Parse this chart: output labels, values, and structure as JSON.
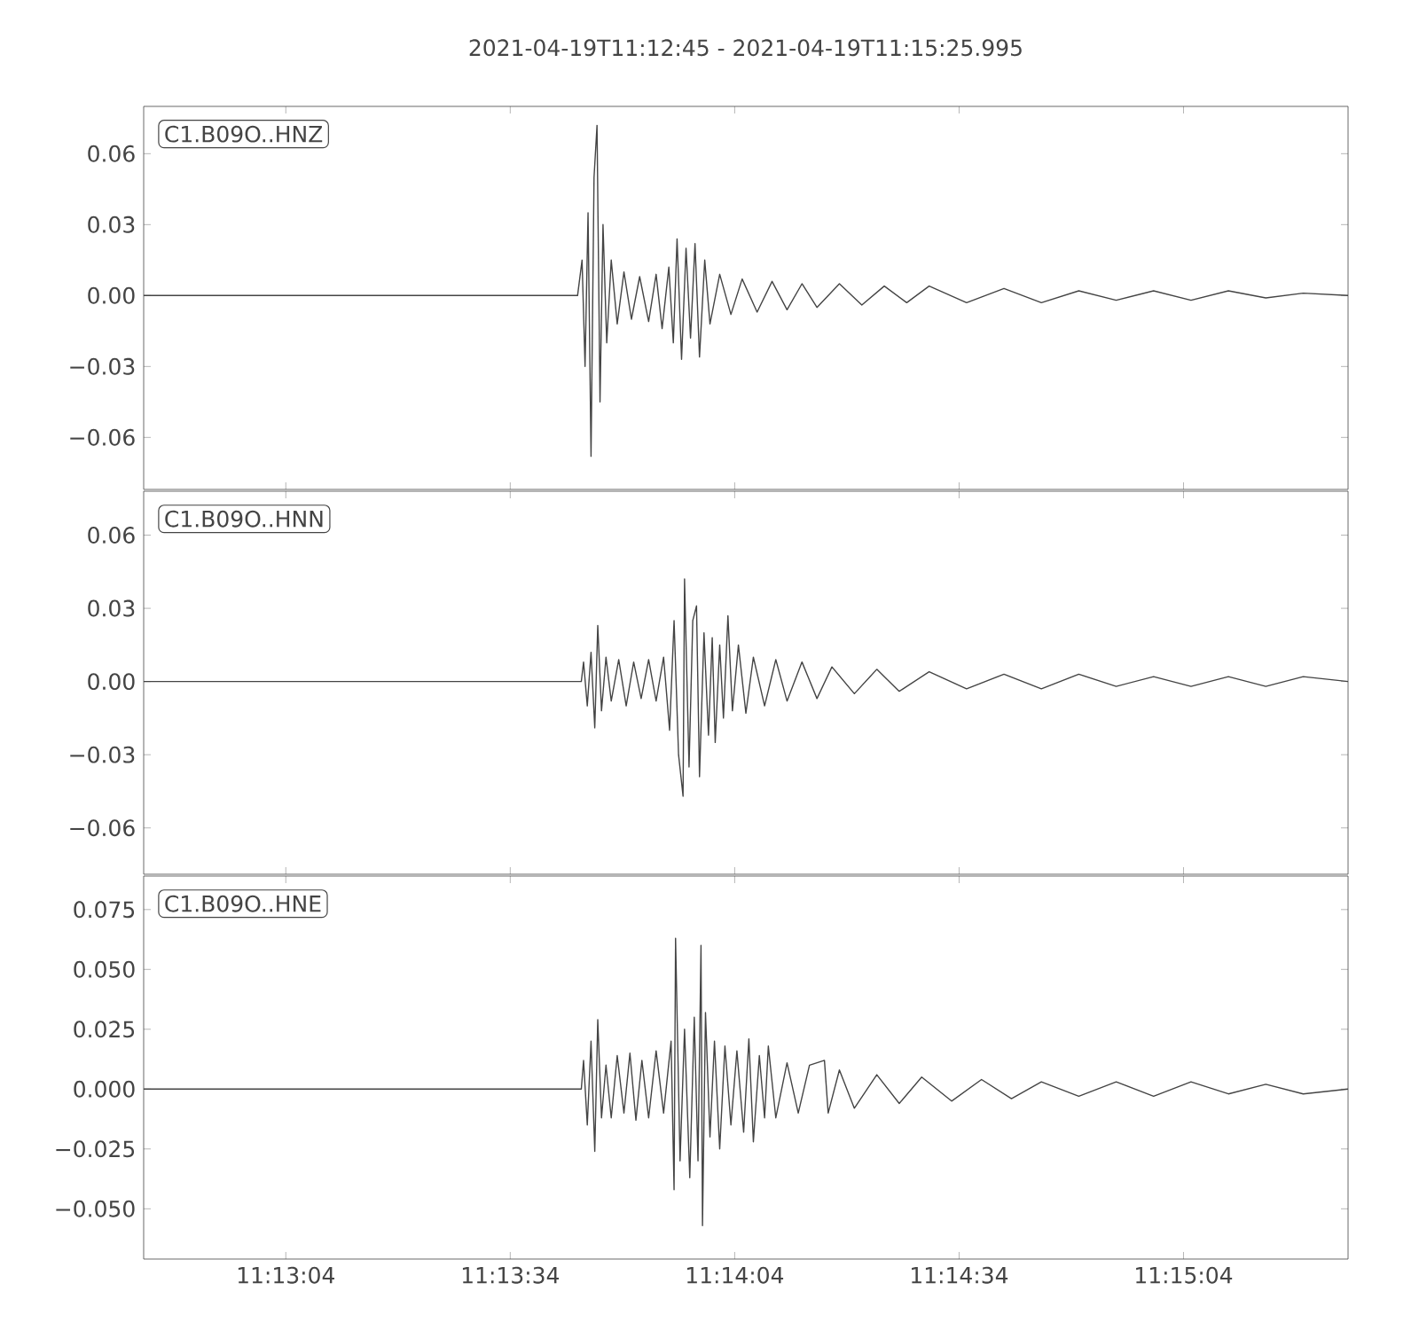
{
  "chart_data": [
    {
      "type": "line",
      "title": "2021-04-19T11:12:45  -  2021-04-19T11:15:25.995",
      "annotations": [
        "C1.B09O..HNZ"
      ],
      "xlim": [
        "2021-04-19T11:12:45",
        "2021-04-19T11:15:25.995"
      ],
      "xticks": [
        {
          "value": "2021-04-19T11:13:04",
          "label": null
        },
        {
          "value": "2021-04-19T11:13:34",
          "label": null
        },
        {
          "value": "2021-04-19T11:14:04",
          "label": null
        },
        {
          "value": "2021-04-19T11:14:34",
          "label": null
        },
        {
          "value": "2021-04-19T11:15:04",
          "label": null
        }
      ],
      "ylim": [
        -0.082,
        0.08
      ],
      "yticks": [
        {
          "value": -0.06,
          "label": "−0.06"
        },
        {
          "value": -0.03,
          "label": "−0.03"
        },
        {
          "value": 0,
          "label": "0.00"
        },
        {
          "value": 0.03,
          "label": "0.03"
        },
        {
          "value": 0.06,
          "label": "0.06"
        }
      ],
      "tick_labels": "y",
      "x": [
        "2021-04-19T11:12:45",
        "2021-04-19T11:13:15",
        "2021-04-19T11:13:43",
        "2021-04-19T11:13:43.6",
        "2021-04-19T11:13:44",
        "2021-04-19T11:13:44.4",
        "2021-04-19T11:13:44.8",
        "2021-04-19T11:13:45.2",
        "2021-04-19T11:13:45.6",
        "2021-04-19T11:13:46",
        "2021-04-19T11:13:46.4",
        "2021-04-19T11:13:46.9",
        "2021-04-19T11:13:47.5",
        "2021-04-19T11:13:48.3",
        "2021-04-19T11:13:49.2",
        "2021-04-19T11:13:50.2",
        "2021-04-19T11:13:51.3",
        "2021-04-19T11:13:52.5",
        "2021-04-19T11:13:53.5",
        "2021-04-19T11:13:54.3",
        "2021-04-19T11:13:55.2",
        "2021-04-19T11:13:55.8",
        "2021-04-19T11:13:56.3",
        "2021-04-19T11:13:56.9",
        "2021-04-19T11:13:57.5",
        "2021-04-19T11:13:58.1",
        "2021-04-19T11:13:58.7",
        "2021-04-19T11:13:59.3",
        "2021-04-19T11:14:00",
        "2021-04-19T11:14:00.7",
        "2021-04-19T11:14:02",
        "2021-04-19T11:14:03.5",
        "2021-04-19T11:14:05",
        "2021-04-19T11:14:07",
        "2021-04-19T11:14:09",
        "2021-04-19T11:14:11",
        "2021-04-19T11:14:13",
        "2021-04-19T11:14:15",
        "2021-04-19T11:14:18",
        "2021-04-19T11:14:21",
        "2021-04-19T11:14:24",
        "2021-04-19T11:14:27",
        "2021-04-19T11:14:30",
        "2021-04-19T11:14:35",
        "2021-04-19T11:14:40",
        "2021-04-19T11:14:45",
        "2021-04-19T11:14:50",
        "2021-04-19T11:14:55",
        "2021-04-19T11:15:00",
        "2021-04-19T11:15:05",
        "2021-04-19T11:15:10",
        "2021-04-19T11:15:15",
        "2021-04-19T11:15:20",
        "2021-04-19T11:15:25.995"
      ],
      "series": [
        {
          "color": "#444444",
          "values": [
            0,
            0,
            0,
            0.015,
            -0.03,
            0.035,
            -0.068,
            0.05,
            0.072,
            -0.045,
            0.03,
            -0.02,
            0.015,
            -0.012,
            0.01,
            -0.01,
            0.008,
            -0.011,
            0.009,
            -0.014,
            0.012,
            -0.02,
            0.024,
            -0.027,
            0.02,
            -0.018,
            0.022,
            -0.026,
            0.015,
            -0.012,
            0.009,
            -0.008,
            0.007,
            -0.007,
            0.006,
            -0.006,
            0.005,
            -0.005,
            0.005,
            -0.004,
            0.004,
            -0.003,
            0.004,
            -0.003,
            0.003,
            -0.003,
            0.002,
            -0.002,
            0.002,
            -0.002,
            0.002,
            -0.001,
            0.001,
            0
          ]
        }
      ]
    },
    {
      "type": "line",
      "annotations": [
        "C1.B09O..HNN"
      ],
      "xlim": [
        "2021-04-19T11:12:45",
        "2021-04-19T11:15:25.995"
      ],
      "xticks": [
        {
          "value": "2021-04-19T11:13:04",
          "label": null
        },
        {
          "value": "2021-04-19T11:13:34",
          "label": null
        },
        {
          "value": "2021-04-19T11:14:04",
          "label": null
        },
        {
          "value": "2021-04-19T11:14:34",
          "label": null
        },
        {
          "value": "2021-04-19T11:15:04",
          "label": null
        }
      ],
      "ylim": [
        -0.079,
        0.078
      ],
      "yticks": [
        {
          "value": -0.06,
          "label": "−0.06"
        },
        {
          "value": -0.03,
          "label": "−0.03"
        },
        {
          "value": 0,
          "label": "0.00"
        },
        {
          "value": 0.03,
          "label": "0.03"
        },
        {
          "value": 0.06,
          "label": "0.06"
        }
      ],
      "tick_labels": "y",
      "x": [
        "2021-04-19T11:12:45",
        "2021-04-19T11:13:15",
        "2021-04-19T11:13:43.5",
        "2021-04-19T11:13:43.8",
        "2021-04-19T11:13:44.3",
        "2021-04-19T11:13:44.8",
        "2021-04-19T11:13:45.3",
        "2021-04-19T11:13:45.7",
        "2021-04-19T11:13:46.2",
        "2021-04-19T11:13:46.8",
        "2021-04-19T11:13:47.5",
        "2021-04-19T11:13:48.5",
        "2021-04-19T11:13:49.5",
        "2021-04-19T11:13:50.5",
        "2021-04-19T11:13:51.5",
        "2021-04-19T11:13:52.5",
        "2021-04-19T11:13:53.5",
        "2021-04-19T11:13:54.5",
        "2021-04-19T11:13:55.3",
        "2021-04-19T11:13:55.9",
        "2021-04-19T11:13:56.5",
        "2021-04-19T11:13:57.1",
        "2021-04-19T11:13:57.3",
        "2021-04-19T11:13:57.9",
        "2021-04-19T11:13:58.4",
        "2021-04-19T11:13:58.9",
        "2021-04-19T11:13:59.3",
        "2021-04-19T11:13:59.9",
        "2021-04-19T11:14:00.5",
        "2021-04-19T11:14:01",
        "2021-04-19T11:14:01.4",
        "2021-04-19T11:14:02",
        "2021-04-19T11:14:02.5",
        "2021-04-19T11:14:03.1",
        "2021-04-19T11:14:03.7",
        "2021-04-19T11:14:04.5",
        "2021-04-19T11:14:05.5",
        "2021-04-19T11:14:06.5",
        "2021-04-19T11:14:08",
        "2021-04-19T11:14:09.5",
        "2021-04-19T11:14:11",
        "2021-04-19T11:14:13",
        "2021-04-19T11:14:15",
        "2021-04-19T11:14:17",
        "2021-04-19T11:14:20",
        "2021-04-19T11:14:23",
        "2021-04-19T11:14:26",
        "2021-04-19T11:14:30",
        "2021-04-19T11:14:35",
        "2021-04-19T11:14:40",
        "2021-04-19T11:14:45",
        "2021-04-19T11:14:50",
        "2021-04-19T11:14:55",
        "2021-04-19T11:15:00",
        "2021-04-19T11:15:05",
        "2021-04-19T11:15:10",
        "2021-04-19T11:15:15",
        "2021-04-19T11:15:20",
        "2021-04-19T11:15:25.995"
      ],
      "series": [
        {
          "color": "#444444",
          "values": [
            0,
            0,
            0,
            0.008,
            -0.01,
            0.012,
            -0.019,
            0.023,
            -0.012,
            0.01,
            -0.008,
            0.009,
            -0.01,
            0.008,
            -0.007,
            0.009,
            -0.008,
            0.01,
            -0.02,
            0.025,
            -0.03,
            -0.047,
            0.042,
            -0.035,
            0.025,
            0.031,
            -0.039,
            0.02,
            -0.022,
            0.018,
            -0.025,
            0.015,
            -0.015,
            0.027,
            -0.012,
            0.015,
            -0.013,
            0.01,
            -0.01,
            0.009,
            -0.008,
            0.008,
            -0.007,
            0.006,
            -0.005,
            0.005,
            -0.004,
            0.004,
            -0.003,
            0.003,
            -0.003,
            0.003,
            -0.002,
            0.002,
            -0.002,
            0.002,
            -0.002,
            0.002,
            0
          ]
        }
      ]
    },
    {
      "type": "line",
      "annotations": [
        "C1.B09O..HNE"
      ],
      "xlim": [
        "2021-04-19T11:12:45",
        "2021-04-19T11:15:25.995"
      ],
      "xticks": [
        {
          "value": "2021-04-19T11:13:04",
          "label": "11:13:04"
        },
        {
          "value": "2021-04-19T11:13:34",
          "label": "11:13:34"
        },
        {
          "value": "2021-04-19T11:14:04",
          "label": "11:14:04"
        },
        {
          "value": "2021-04-19T11:14:34",
          "label": "11:14:34"
        },
        {
          "value": "2021-04-19T11:15:04",
          "label": "11:15:04"
        }
      ],
      "ylim": [
        -0.071,
        0.089
      ],
      "yticks": [
        {
          "value": -0.05,
          "label": "−0.050"
        },
        {
          "value": -0.025,
          "label": "−0.025"
        },
        {
          "value": 0,
          "label": "0.000"
        },
        {
          "value": 0.025,
          "label": "0.025"
        },
        {
          "value": 0.05,
          "label": "0.050"
        },
        {
          "value": 0.075,
          "label": "0.075"
        }
      ],
      "x": [
        "2021-04-19T11:12:45",
        "2021-04-19T11:13:15",
        "2021-04-19T11:13:43.5",
        "2021-04-19T11:13:43.8",
        "2021-04-19T11:13:44.3",
        "2021-04-19T11:13:44.8",
        "2021-04-19T11:13:45.3",
        "2021-04-19T11:13:45.7",
        "2021-04-19T11:13:46.2",
        "2021-04-19T11:13:46.8",
        "2021-04-19T11:13:47.5",
        "2021-04-19T11:13:48.3",
        "2021-04-19T11:13:49.2",
        "2021-04-19T11:13:50",
        "2021-04-19T11:13:50.8",
        "2021-04-19T11:13:51.6",
        "2021-04-19T11:13:52.5",
        "2021-04-19T11:13:53.5",
        "2021-04-19T11:13:54.5",
        "2021-04-19T11:13:55.5",
        "2021-04-19T11:13:55.9",
        "2021-04-19T11:13:56.1",
        "2021-04-19T11:13:56.7",
        "2021-04-19T11:13:57.3",
        "2021-04-19T11:13:58",
        "2021-04-19T11:13:58.6",
        "2021-04-19T11:13:59.1",
        "2021-04-19T11:13:59.5",
        "2021-04-19T11:13:59.7",
        "2021-04-19T11:14:00.1",
        "2021-04-19T11:14:00.7",
        "2021-04-19T11:14:01.3",
        "2021-04-19T11:14:02",
        "2021-04-19T11:14:02.7",
        "2021-04-19T11:14:03.5",
        "2021-04-19T11:14:04.3",
        "2021-04-19T11:14:05.2",
        "2021-04-19T11:14:05.9",
        "2021-04-19T11:14:06.5",
        "2021-04-19T11:14:07.3",
        "2021-04-19T11:14:08",
        "2021-04-19T11:14:08.5",
        "2021-04-19T11:14:09.5",
        "2021-04-19T11:14:11",
        "2021-04-19T11:14:12.5",
        "2021-04-19T11:14:14",
        "2021-04-19T11:14:16",
        "2021-04-19T11:14:16.5",
        "2021-04-19T11:14:18",
        "2021-04-19T11:14:20",
        "2021-04-19T11:14:23",
        "2021-04-19T11:14:26",
        "2021-04-19T11:14:29",
        "2021-04-19T11:14:33",
        "2021-04-19T11:14:37",
        "2021-04-19T11:14:41",
        "2021-04-19T11:14:45",
        "2021-04-19T11:14:50",
        "2021-04-19T11:14:55",
        "2021-04-19T11:15:00",
        "2021-04-19T11:15:05",
        "2021-04-19T11:15:10",
        "2021-04-19T11:15:15",
        "2021-04-19T11:15:20",
        "2021-04-19T11:15:25.995"
      ],
      "series": [
        {
          "color": "#444444",
          "values": [
            0,
            0,
            0,
            0.012,
            -0.015,
            0.02,
            -0.026,
            0.029,
            -0.012,
            0.01,
            -0.012,
            0.014,
            -0.01,
            0.015,
            -0.013,
            0.012,
            -0.012,
            0.016,
            -0.01,
            0.02,
            -0.042,
            0.063,
            -0.03,
            0.025,
            -0.037,
            0.03,
            -0.03,
            0.06,
            -0.057,
            0.032,
            -0.02,
            0.02,
            -0.025,
            0.018,
            -0.015,
            0.016,
            -0.018,
            0.021,
            -0.022,
            0.014,
            -0.012,
            0.018,
            -0.012,
            0.011,
            -0.01,
            0.01,
            0.012,
            -0.01,
            0.008,
            -0.008,
            0.006,
            -0.006,
            0.005,
            -0.005,
            0.004,
            -0.004,
            0.003,
            -0.003,
            0.003,
            -0.003,
            0.003,
            -0.002,
            0.002,
            -0.002,
            0
          ]
        }
      ]
    }
  ]
}
